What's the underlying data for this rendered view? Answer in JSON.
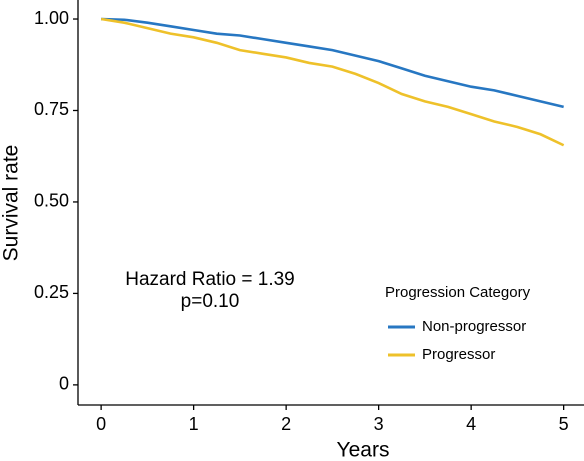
{
  "chart_data": {
    "type": "line",
    "x_label": "Years",
    "y_label": "Survival rate",
    "x": [
      0,
      0.25,
      0.5,
      0.75,
      1,
      1.25,
      1.5,
      1.75,
      2,
      2.25,
      2.5,
      2.75,
      3,
      3.25,
      3.5,
      3.75,
      4,
      4.25,
      4.5,
      4.75,
      5
    ],
    "series": [
      {
        "name": "Non-progressor",
        "color": "#2777c2",
        "values": [
          1.0,
          0.998,
          0.99,
          0.98,
          0.97,
          0.96,
          0.955,
          0.945,
          0.935,
          0.925,
          0.915,
          0.9,
          0.885,
          0.865,
          0.845,
          0.83,
          0.815,
          0.805,
          0.79,
          0.775,
          0.76
        ]
      },
      {
        "name": "Progressor",
        "color": "#eec12a",
        "values": [
          1.0,
          0.99,
          0.975,
          0.96,
          0.95,
          0.935,
          0.915,
          0.905,
          0.895,
          0.88,
          0.87,
          0.85,
          0.825,
          0.795,
          0.775,
          0.76,
          0.74,
          0.72,
          0.705,
          0.685,
          0.655
        ]
      }
    ],
    "xlim": [
      -0.25,
      5.22
    ],
    "xticks": [
      0,
      1,
      2,
      3,
      4,
      5
    ],
    "ylim": [
      -0.055,
      1.052
    ],
    "yticks": [
      0,
      {
        "value": 0.25,
        "label": "0.25"
      },
      {
        "value": 0.5,
        "label": "0.50"
      },
      {
        "value": 0.75,
        "label": "0.75"
      },
      {
        "value": 1,
        "label": "1.00"
      }
    ],
    "legend_title": "Progression Category",
    "legend_position": "lower right",
    "annotations": [
      "Hazard Ratio = 1.39",
      "p=0.10"
    ]
  }
}
